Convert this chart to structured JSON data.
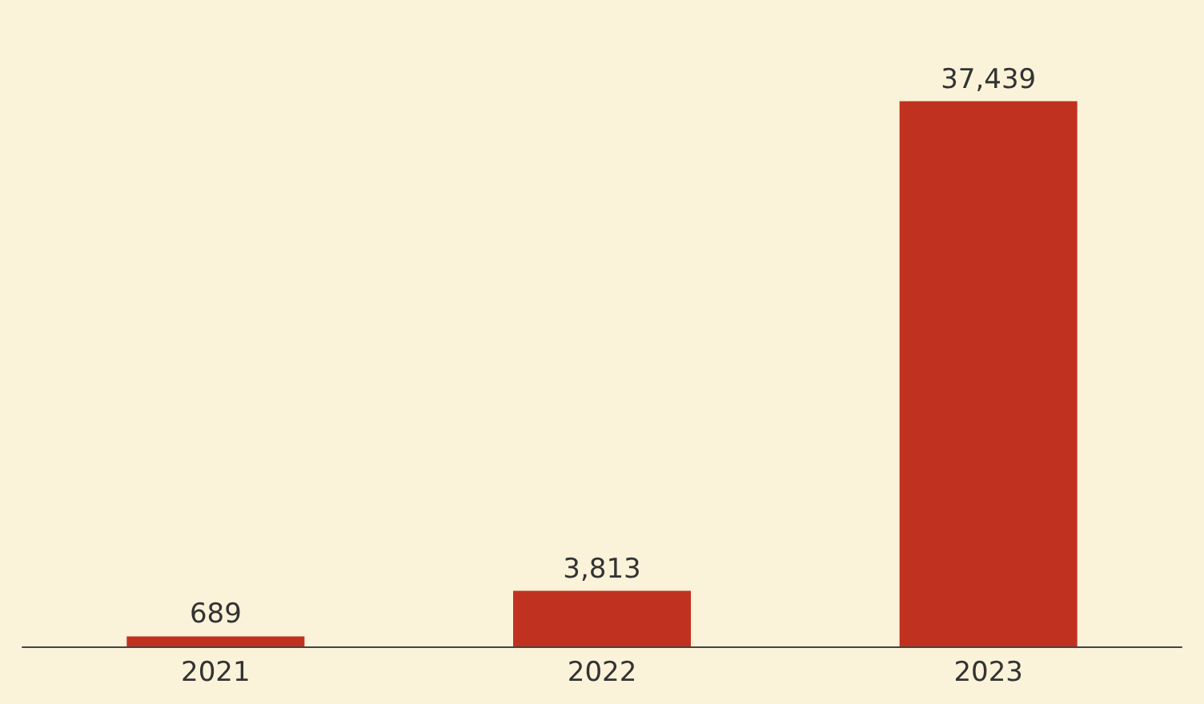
{
  "chart_data": {
    "type": "bar",
    "categories": [
      "2021",
      "2022",
      "2023"
    ],
    "values": [
      689,
      3813,
      37439
    ],
    "value_labels": [
      "689",
      "3,813",
      "37,439"
    ],
    "color": "#c0321f"
  }
}
